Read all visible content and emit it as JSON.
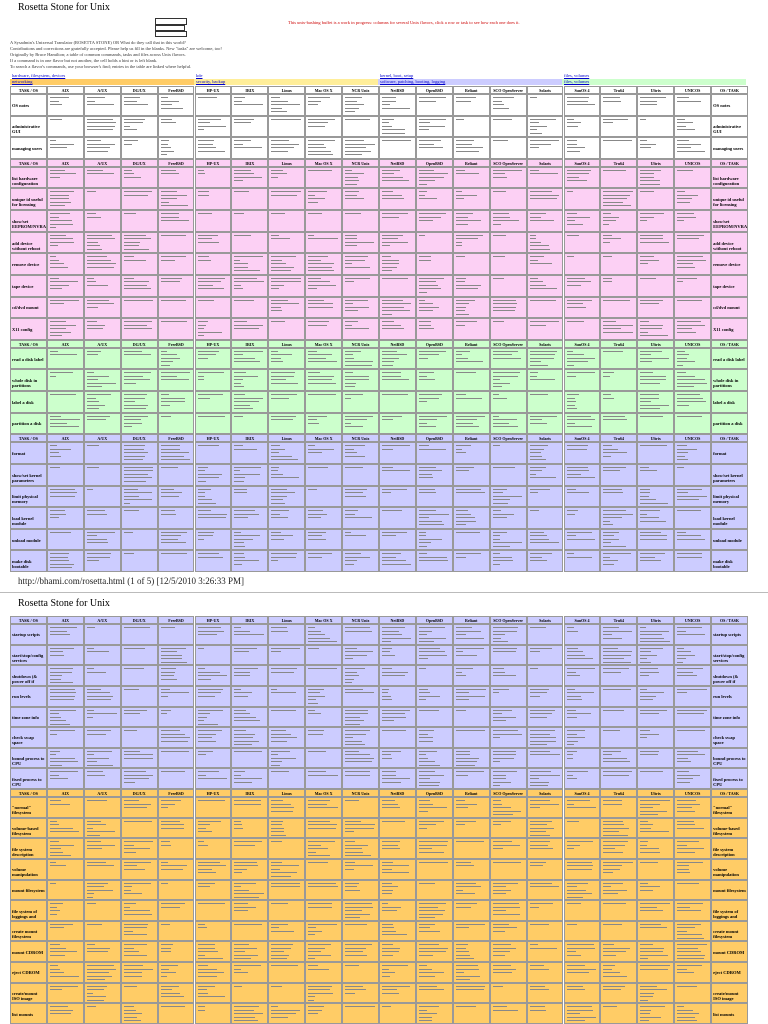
{
  "pages": [
    {
      "title": "Rosetta Stone for Unix",
      "notice": "This unix-bashing buffet is a work in progress: columns for several Unix flavors, click a row or task to see how each one does it.",
      "intro": [
        "A Sysadmin's Unixersal Translator (ROSETTA STONE) OR What do they call that in this world?",
        "Contributions and corrections are gratefully accepted. Please help us fill in the blanks. New \"tasks\" are welcome, too!",
        "Originally by Bruce Hamilton; a table of common commands, tasks and files across Unix flavors.",
        "If a command is in one flavor but not another, the cell holds a hint or is left blank.",
        "To search a flavor's commands, use your browser's find; entries in the table are linked where helpful."
      ],
      "links": [
        {
          "label": "hardware, filesystem, devices",
          "color": "#ffffff"
        },
        {
          "label": "kde",
          "color": "#ffffff"
        },
        {
          "label": "kernel, boot, setup",
          "color": "#ffffff"
        },
        {
          "label": "files, volumes",
          "color": "#ffffff"
        },
        {
          "label": "networking",
          "color": "#ffcc66"
        },
        {
          "label": "security, backup",
          "color": "#ffee99"
        },
        {
          "label": "software, patching, booting, logging",
          "color": "#ccccff"
        },
        {
          "label": "files, volumes",
          "color": "#ccffcc"
        }
      ],
      "blocks": [
        {
          "color": "#ffffff",
          "rows": [
            "OS notes",
            "administrative GUI",
            "managing users"
          ]
        },
        {
          "color": "#fcd0f4",
          "rows": [
            "list hardware configuration",
            "unique id useful for licensing",
            "show/set EEPROM/NVRAM",
            "add device without reboot",
            "remove device",
            "tape device",
            "cd/dvd mount",
            "X11 config"
          ]
        },
        {
          "color": "#ccffcc",
          "rows": [
            "read a disk label",
            "whole disk in partitions",
            "label a disk",
            "partition a disk"
          ]
        },
        {
          "color": "#ccccff",
          "rows": [
            "format",
            "show/set kernel parameters",
            "limit physical memory",
            "load kernel module",
            "unload module",
            "make disk bootable"
          ]
        }
      ],
      "footer": "http://bhami.com/rosetta.html (1 of 5) [12/5/2010 3:26:33 PM]"
    },
    {
      "title": "Rosetta Stone for Unix",
      "blocks": [
        {
          "color": "#ccccff",
          "rows": [
            "startup scripts",
            "start/stop/config services",
            "shutdown (& power off if possible)",
            "run levels",
            "time zone info",
            "check swap space",
            "bound process to CPU",
            "fixed process to CPU"
          ]
        },
        {
          "color": "#ffcc66",
          "rows": [
            "\"normal\" filesystem",
            "volume-based filesystem",
            "file system description",
            "volume manipulation",
            "mount filesystem",
            "file system of loggings and journal",
            "create mount filesystem",
            "mount CDROM",
            "eject CDROM",
            "create/mount ISO image",
            "list mounts"
          ]
        }
      ]
    }
  ],
  "columns": [
    "TASK / OS",
    "AIX",
    "A/UX",
    "DG/UX",
    "FreeBSD",
    "HP-UX",
    "IRIX",
    "Linux",
    "Mac OS X",
    "NCR Unix",
    "NetBSD",
    "OpenBSD",
    "Reliant",
    "SCO OpenServer",
    "Solaris",
    "SunOS 4",
    "Tru64",
    "Ultrix",
    "UNICOS",
    "OS / TASK"
  ]
}
